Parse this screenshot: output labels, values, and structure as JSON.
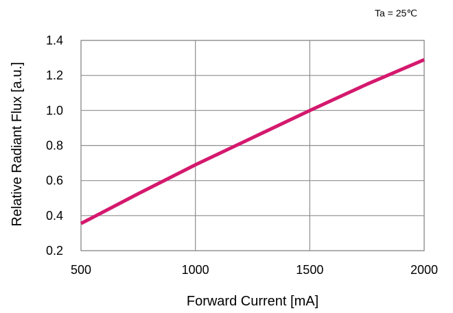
{
  "chart_data": {
    "type": "line",
    "title": "",
    "annotation": "Ta = 25℃",
    "xlabel": "Forward Current [mA]",
    "ylabel": "Relative Radiant Flux [a.u.]",
    "xlim": [
      500,
      2000
    ],
    "ylim": [
      0.2,
      1.4
    ],
    "xticks": [
      500,
      1000,
      1500,
      2000
    ],
    "yticks": [
      0.2,
      0.4,
      0.6,
      0.8,
      1.0,
      1.2,
      1.4
    ],
    "xtick_labels": [
      "500",
      "1000",
      "1500",
      "2000"
    ],
    "ytick_labels": [
      "0.2",
      "0.4",
      "0.6",
      "0.8",
      "1.0",
      "1.2",
      "1.4"
    ],
    "grid": true,
    "legend": "none",
    "series": [
      {
        "color": "#d4196e",
        "x": [
          500,
          750,
          1000,
          1250,
          1500,
          1750,
          2000
        ],
        "y": [
          0.355,
          0.525,
          0.69,
          0.845,
          1.0,
          1.15,
          1.29
        ]
      }
    ]
  }
}
